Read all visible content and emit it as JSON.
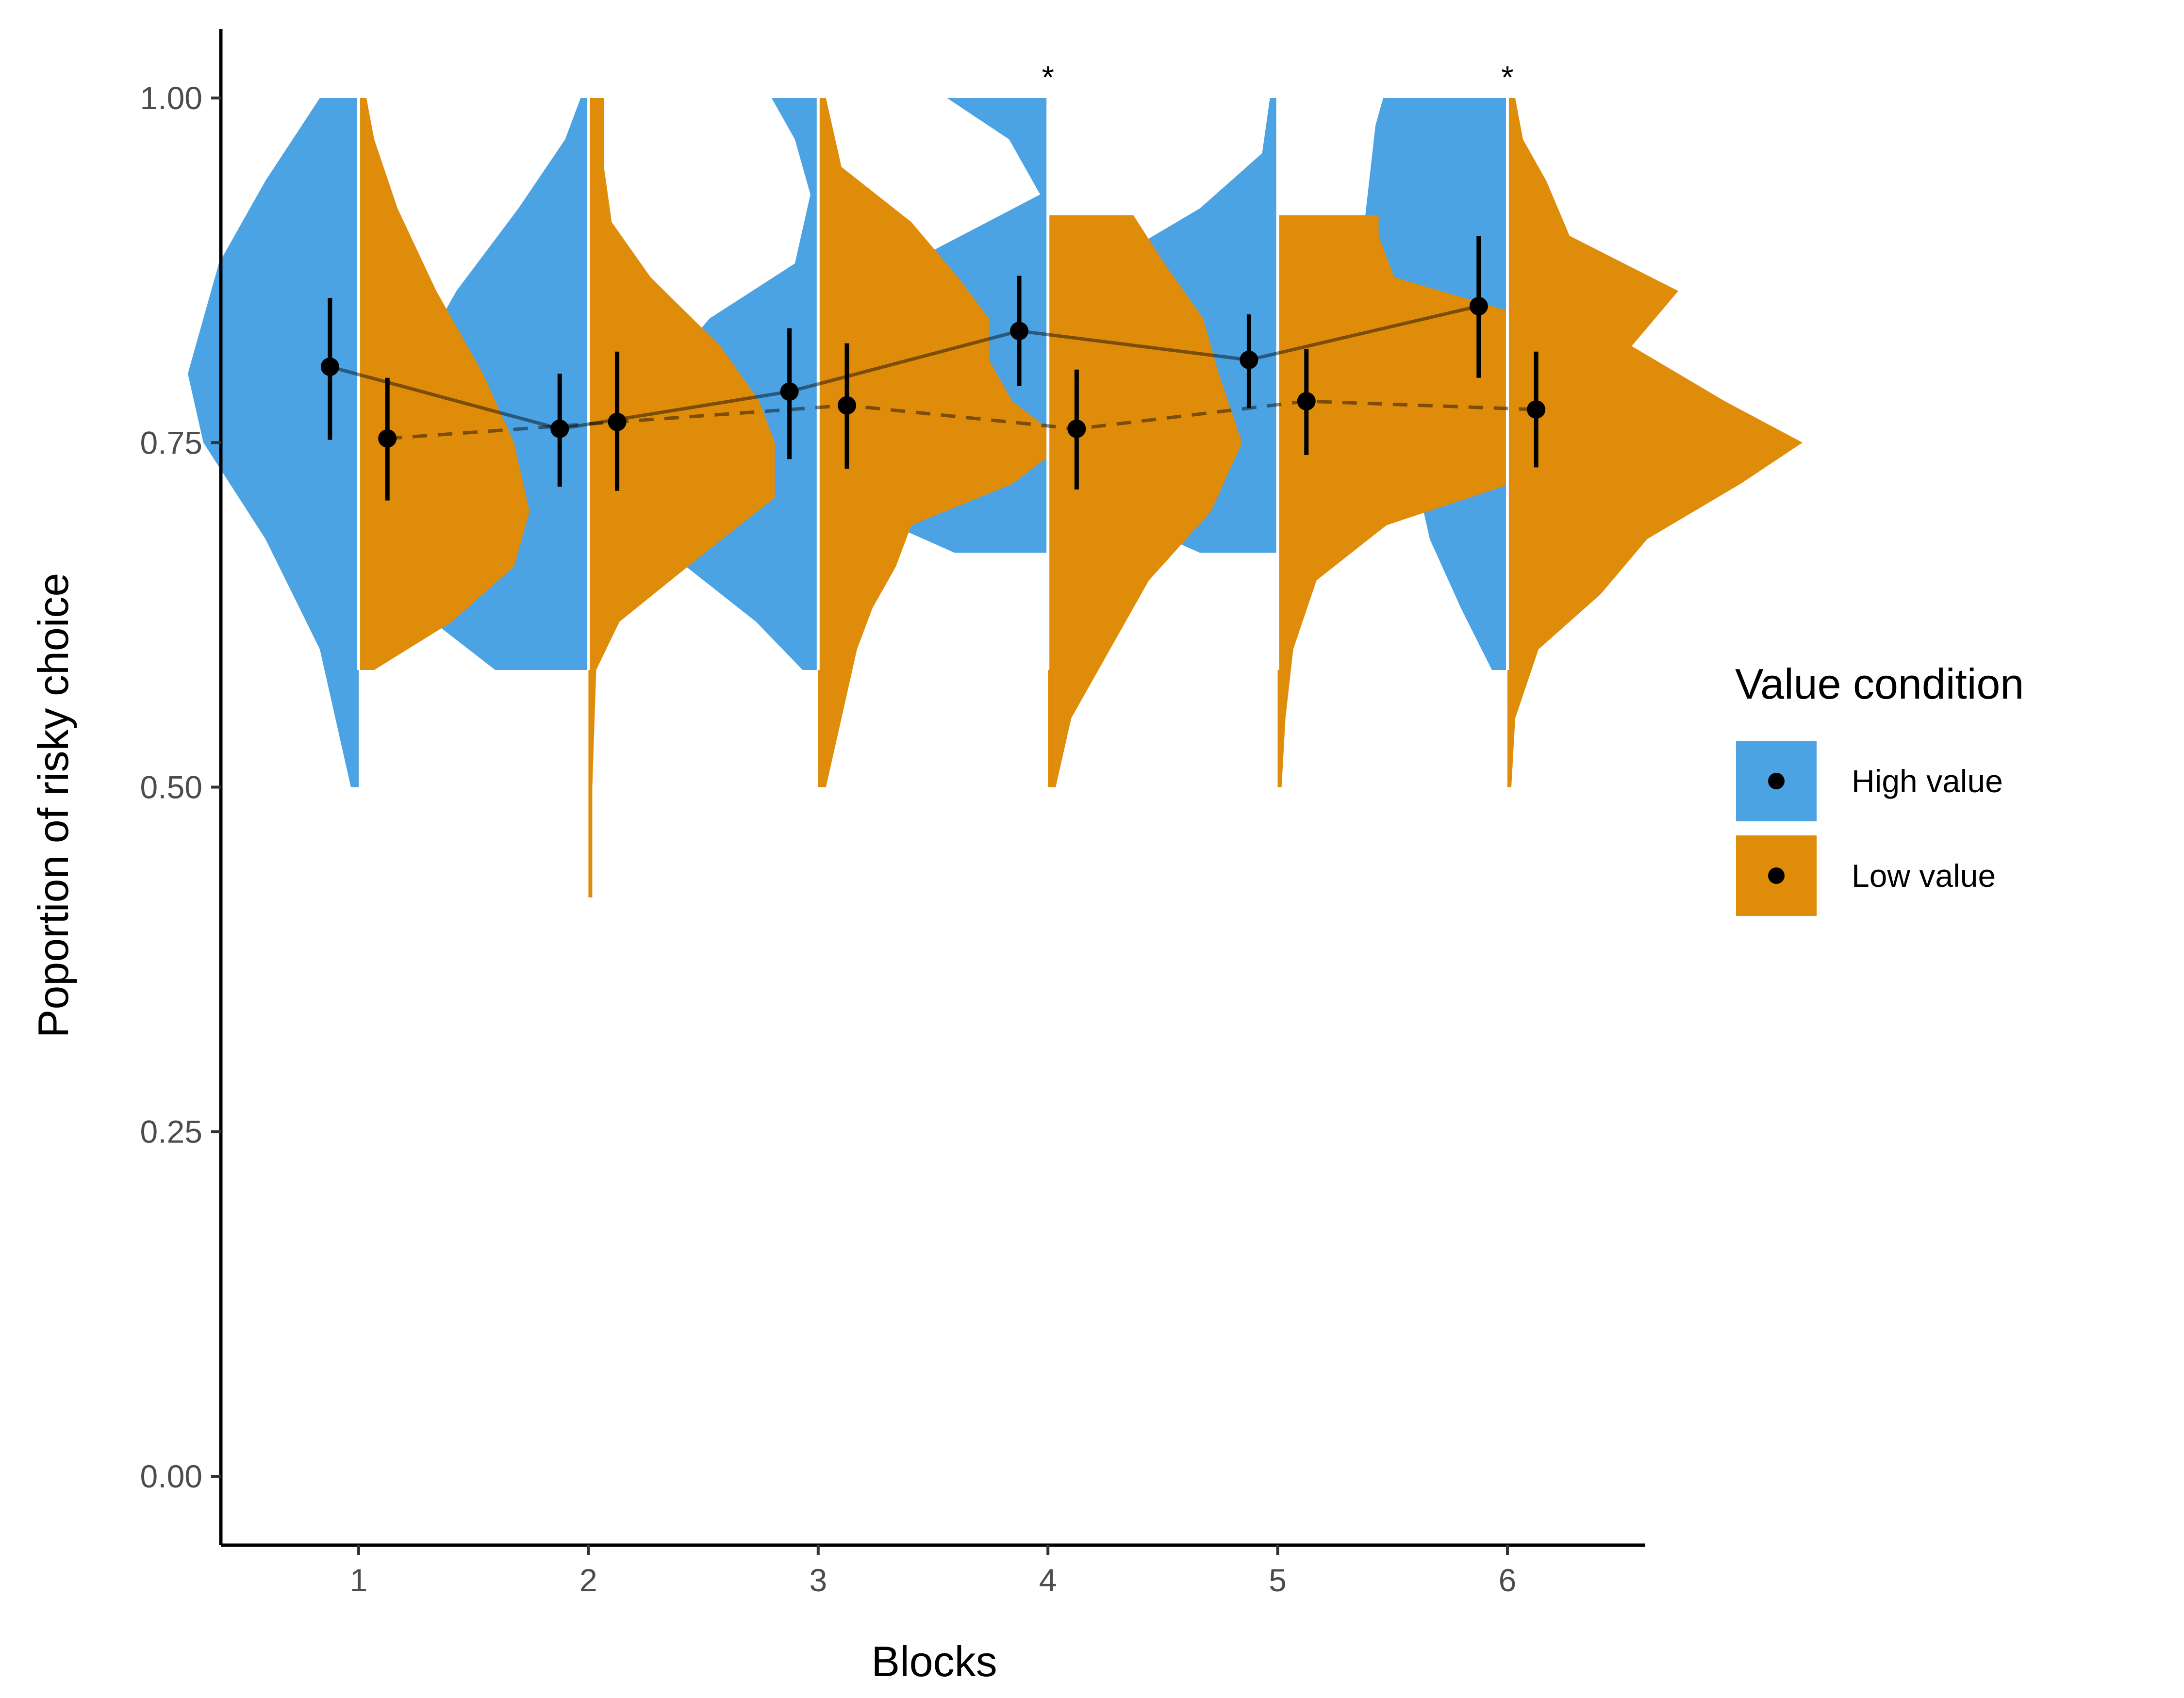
{
  "chart_data": {
    "type": "violin",
    "xlabel": "Blocks",
    "ylabel": "Poportion of risky choice",
    "ylim": [
      -0.05,
      1.05
    ],
    "yticks": [
      "0.00",
      "0.25",
      "0.50",
      "0.75",
      "1.00"
    ],
    "categories": [
      "1",
      "2",
      "3",
      "4",
      "5",
      "6"
    ],
    "legend": {
      "title": "Value condition",
      "position": "right",
      "items": [
        {
          "label": "High value",
          "color": "#4BA3E3"
        },
        {
          "label": "Low value",
          "color": "#E08C0B"
        }
      ]
    },
    "significance": [
      {
        "block": "4",
        "label": "*"
      },
      {
        "block": "6",
        "label": "*"
      }
    ],
    "series": [
      {
        "name": "High value",
        "color": "#4BA3E3",
        "side": "left",
        "line_style": "solid",
        "means": [
          0.805,
          0.76,
          0.787,
          0.831,
          0.81,
          0.849
        ],
        "ci_low": [
          0.752,
          0.718,
          0.738,
          0.791,
          0.775,
          0.797
        ],
        "ci_high": [
          0.855,
          0.8,
          0.833,
          0.871,
          0.843,
          0.9
        ],
        "density": [
          {
            "y": [
              0.5,
              0.6,
              0.68,
              0.75,
              0.8,
              0.88,
              0.94,
              1.0
            ],
            "w": [
              0.01,
              0.05,
              0.12,
              0.2,
              0.22,
              0.18,
              0.12,
              0.05
            ]
          },
          {
            "y": [
              0.585,
              0.62,
              0.68,
              0.72,
              0.76,
              0.8,
              0.86,
              0.92,
              0.97,
              1.0
            ],
            "w": [
              0.12,
              0.2,
              0.24,
              0.22,
              0.2,
              0.23,
              0.17,
              0.09,
              0.03,
              0.01
            ]
          },
          {
            "y": [
              0.585,
              0.62,
              0.66,
              0.72,
              0.76,
              0.8,
              0.84,
              0.88,
              0.93,
              0.97,
              1.0
            ],
            "w": [
              0.02,
              0.08,
              0.17,
              0.23,
              0.28,
              0.2,
              0.14,
              0.03,
              0.01,
              0.03,
              0.06
            ]
          },
          {
            "y": [
              0.67,
              0.71,
              0.76,
              0.8,
              0.84,
              0.88,
              0.93,
              0.97,
              1.0
            ],
            "w": [
              0.12,
              0.28,
              0.28,
              0.26,
              0.37,
              0.18,
              0.01,
              0.05,
              0.13
            ]
          },
          {
            "y": [
              0.67,
              0.7,
              0.73,
              0.76,
              0.79,
              0.82,
              0.85,
              0.88,
              0.92,
              0.96,
              1.0
            ],
            "w": [
              0.1,
              0.22,
              0.38,
              0.43,
              0.33,
              0.38,
              0.39,
              0.22,
              0.1,
              0.02,
              0.01
            ]
          },
          {
            "y": [
              0.585,
              0.63,
              0.68,
              0.73,
              0.78,
              0.83,
              0.88,
              0.93,
              0.98,
              1.0
            ],
            "w": [
              0.02,
              0.06,
              0.1,
              0.12,
              0.15,
              0.17,
              0.19,
              0.18,
              0.17,
              0.16
            ]
          }
        ]
      },
      {
        "name": "Low value",
        "color": "#E08C0B",
        "side": "right",
        "line_style": "dashed",
        "means": [
          0.753,
          0.765,
          0.777,
          0.76,
          0.78,
          0.774
        ],
        "ci_low": [
          0.708,
          0.715,
          0.731,
          0.716,
          0.741,
          0.732
        ],
        "ci_high": [
          0.797,
          0.816,
          0.822,
          0.803,
          0.818,
          0.816
        ],
        "density": [
          {
            "y": [
              0.585,
              0.62,
              0.66,
              0.7,
              0.75,
              0.8,
              0.86,
              0.92,
              0.97,
              1.0
            ],
            "w": [
              0.02,
              0.12,
              0.2,
              0.22,
              0.2,
              0.16,
              0.1,
              0.05,
              0.02,
              0.01
            ]
          },
          {
            "y": [
              0.42,
              0.5,
              0.585,
              0.62,
              0.67,
              0.71,
              0.75,
              0.78,
              0.82,
              0.87,
              0.91,
              0.95,
              1.0
            ],
            "w": [
              0.005,
              0.005,
              0.01,
              0.04,
              0.15,
              0.24,
              0.24,
              0.22,
              0.17,
              0.08,
              0.03,
              0.02,
              0.02
            ]
          },
          {
            "y": [
              0.5,
              0.55,
              0.6,
              0.63,
              0.66,
              0.69,
              0.72,
              0.75,
              0.78,
              0.81,
              0.84,
              0.87,
              0.91,
              0.95,
              1.0
            ],
            "w": [
              0.01,
              0.03,
              0.05,
              0.07,
              0.1,
              0.12,
              0.25,
              0.32,
              0.25,
              0.22,
              0.22,
              0.18,
              0.12,
              0.03,
              0.01
            ]
          },
          {
            "y": [
              0.5,
              0.55,
              0.6,
              0.65,
              0.7,
              0.75,
              0.8,
              0.84,
              0.88,
              0.915
            ],
            "w": [
              0.01,
              0.03,
              0.08,
              0.13,
              0.21,
              0.25,
              0.22,
              0.2,
              0.15,
              0.11
            ]
          },
          {
            "y": [
              0.5,
              0.55,
              0.6,
              0.65,
              0.69,
              0.72,
              0.75,
              0.78,
              0.81,
              0.84,
              0.87,
              0.9,
              0.915
            ],
            "w": [
              0.005,
              0.01,
              0.02,
              0.05,
              0.14,
              0.3,
              0.35,
              0.3,
              0.33,
              0.33,
              0.15,
              0.13,
              0.13
            ]
          },
          {
            "y": [
              0.5,
              0.55,
              0.6,
              0.64,
              0.68,
              0.72,
              0.75,
              0.78,
              0.82,
              0.86,
              0.9,
              0.94,
              0.97,
              1.0
            ],
            "w": [
              0.005,
              0.01,
              0.04,
              0.12,
              0.18,
              0.3,
              0.38,
              0.28,
              0.16,
              0.22,
              0.08,
              0.05,
              0.02,
              0.01
            ]
          }
        ]
      }
    ]
  }
}
